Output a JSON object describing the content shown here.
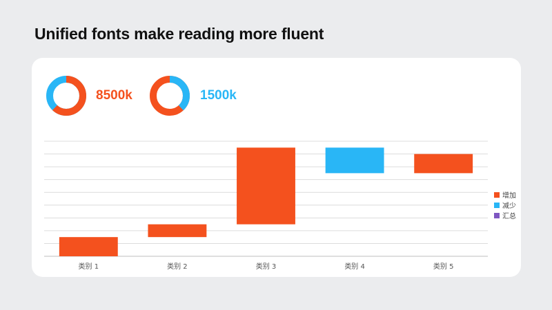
{
  "title": "Unified fonts make reading more fluent",
  "kpis": [
    {
      "value_label": "8500k",
      "color": "#f4511e",
      "track_color": "#29b6f6",
      "fraction": 0.62
    },
    {
      "value_label": "1500k",
      "color": "#29b6f6",
      "track_color": "#f4511e",
      "fraction": 0.38
    }
  ],
  "chart_data": {
    "type": "bar",
    "subtype": "waterfall",
    "categories": [
      "类别 1",
      "类别 2",
      "类别 3",
      "类别 4",
      "类别 5"
    ],
    "bars": [
      {
        "category": "类别 1",
        "kind": "增加",
        "start": 0,
        "end": 1.5
      },
      {
        "category": "类别 2",
        "kind": "增加",
        "start": 1.5,
        "end": 2.5
      },
      {
        "category": "类别 3",
        "kind": "增加",
        "start": 2.5,
        "end": 8.5
      },
      {
        "category": "类别 4",
        "kind": "减少",
        "start": 8.5,
        "end": 6.5
      },
      {
        "category": "类别 5",
        "kind": "增加",
        "start": 6.5,
        "end": 8.0
      }
    ],
    "ylim": [
      0,
      9
    ],
    "gridlines": true,
    "legend": {
      "position": "right",
      "items": [
        {
          "label": "增加",
          "color": "#f4511e"
        },
        {
          "label": "减少",
          "color": "#29b6f6"
        },
        {
          "label": "汇总",
          "color": "#7e57c2"
        }
      ]
    }
  }
}
